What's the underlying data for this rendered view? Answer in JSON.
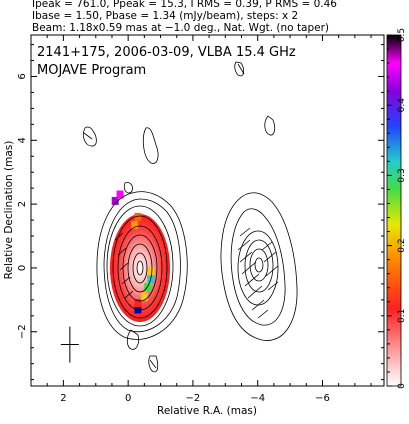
{
  "header": {
    "line1": "Ipeak = 761.0, Ppeak = 15.3, I RMS = 0.39, P RMS = 0.46",
    "line2": "Ibase = 1.50, Pbase = 1.34 (mJy/beam), steps: x 2",
    "line3": "Beam: 1.18x0.59 mas at −1.0 deg., Nat. Wgt. (no taper)"
  },
  "plot": {
    "source_line": "2141+175, 2006-03-09, VLBA 15.4 GHz",
    "program_line": "MOJAVE Program",
    "xlabel": "Relative R.A. (mas)",
    "ylabel": "Relative Declination (mas)"
  },
  "chart_data": {
    "type": "heatmap",
    "x_ticks": [
      {
        "value": 2,
        "label": "2"
      },
      {
        "value": 0,
        "label": "0"
      },
      {
        "value": -2,
        "label": "−2"
      },
      {
        "value": -4,
        "label": "−4"
      },
      {
        "value": -6,
        "label": "−6"
      }
    ],
    "y_ticks": [
      {
        "value": -2,
        "label": "−2"
      },
      {
        "value": 0,
        "label": "0"
      },
      {
        "value": 2,
        "label": "2"
      },
      {
        "value": 4,
        "label": "4"
      },
      {
        "value": 6,
        "label": "6"
      }
    ],
    "xlim": [
      3.0,
      -7.9
    ],
    "ylim": [
      -3.7,
      7.3
    ],
    "colorbar": {
      "min": 0,
      "max": 0.5,
      "ticks": [
        {
          "value": 0,
          "label": "0"
        },
        {
          "value": 0.1,
          "label": "0.1"
        },
        {
          "value": 0.2,
          "label": "0.2"
        },
        {
          "value": 0.3,
          "label": "0.3"
        },
        {
          "value": 0.4,
          "label": "0.4"
        },
        {
          "value": 0.5,
          "label": "0.5"
        }
      ],
      "stops": [
        "#ffffff",
        "#ff9a9a",
        "#ff2020",
        "#ff8800",
        "#e0e000",
        "#44dd44",
        "#22cccc",
        "#2244ff",
        "#8800dd",
        "#ff00ff",
        "#000000"
      ]
    },
    "beam": {
      "x": 1.8,
      "y": -2.4
    },
    "core": {
      "x": -0.1,
      "y": 0.0
    },
    "jet_component": {
      "x": -4.0,
      "y": 0.1
    },
    "pol_patches": [
      {
        "x": -0.3,
        "y": -1.3,
        "color": "#0000aa"
      },
      {
        "x": -0.3,
        "y": -1.1,
        "color": "#ff2020"
      },
      {
        "x": -0.5,
        "y": -0.9,
        "color": "#ffcc00"
      },
      {
        "x": -0.6,
        "y": -0.6,
        "color": "#44dd44"
      },
      {
        "x": -0.7,
        "y": -0.35,
        "color": "#22cccc"
      },
      {
        "x": -0.7,
        "y": -0.1,
        "color": "#ffcc00"
      },
      {
        "x": -0.3,
        "y": 1.6,
        "color": "#ff6600"
      },
      {
        "x": -0.2,
        "y": 1.35,
        "color": "#ff9900"
      },
      {
        "x": 0.4,
        "y": 2.1,
        "color": "#aa00cc"
      },
      {
        "x": 0.25,
        "y": 2.3,
        "color": "#ff00ff"
      }
    ]
  }
}
